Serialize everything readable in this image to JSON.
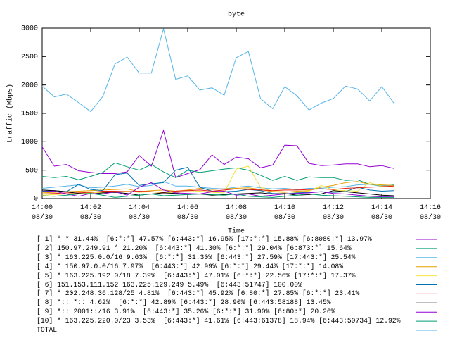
{
  "chart_data": {
    "type": "line",
    "title": "byte",
    "y_label": "traffic (Mbps)",
    "x_label": "Time",
    "x": [
      0,
      0.5,
      1,
      1.5,
      2,
      2.5,
      3,
      3.5,
      4,
      4.5,
      5,
      5.5,
      6,
      6.5,
      7,
      7.5,
      8,
      8.5,
      9,
      9.5,
      10,
      10.5,
      11,
      11.5,
      12,
      12.5,
      13,
      13.5,
      14,
      14.5
    ],
    "xlim": [
      0,
      16
    ],
    "xticks": [
      {
        "value": 0,
        "label": "14:00\n08/30"
      },
      {
        "value": 2,
        "label": "14:02\n08/30"
      },
      {
        "value": 4,
        "label": "14:04\n08/30"
      },
      {
        "value": 6,
        "label": "14:06\n08/30"
      },
      {
        "value": 8,
        "label": "14:08\n08/30"
      },
      {
        "value": 10,
        "label": "14:10\n08/30"
      },
      {
        "value": 12,
        "label": "14:12\n08/30"
      },
      {
        "value": 14,
        "label": "14:14\n08/30"
      },
      {
        "value": 16,
        "label": "14:16\n08/30"
      }
    ],
    "ylim": [
      0,
      3000
    ],
    "yticks": [
      0,
      500,
      1000,
      1500,
      2000,
      2500,
      3000
    ],
    "series": [
      {
        "name": "[ 1] * * 31.44%  [6:*:*] 47.57% [6:443:*] 16.95% [17:*:*] 15.88% [6:8080:*] 13.97%",
        "color": "#9400d3",
        "values": [
          910,
          570,
          600,
          490,
          460,
          440,
          440,
          470,
          760,
          570,
          1200,
          370,
          440,
          510,
          770,
          600,
          730,
          700,
          540,
          590,
          940,
          930,
          620,
          580,
          590,
          610,
          610,
          560,
          580,
          530
        ]
      },
      {
        "name": "[ 2] 150.97.249.91 * 21.20%  [6:443:*] 41.30% [6:*:*] 29.04% [6:873:*] 15.64%",
        "color": "#009e73",
        "values": [
          390,
          370,
          390,
          330,
          390,
          460,
          630,
          560,
          500,
          600,
          470,
          370,
          500,
          460,
          490,
          520,
          540,
          500,
          410,
          320,
          390,
          320,
          380,
          370,
          370,
          320,
          330,
          250,
          220,
          240
        ]
      },
      {
        "name": "[ 3] * 163.225.0.0/16 9.63%  [6:*:*] 31.30% [6:443:*] 27.59% [17:443:*] 25.54%",
        "color": "#56b4e9",
        "values": [
          180,
          200,
          220,
          240,
          190,
          200,
          220,
          250,
          210,
          230,
          300,
          220,
          220,
          200,
          180,
          170,
          200,
          220,
          190,
          170,
          180,
          160,
          180,
          180,
          200,
          210,
          240,
          250,
          230,
          230
        ]
      },
      {
        "name": "[ 4] * 150.97.0.0/16 7.97%  [6:443:*] 42.99% [6:*:*] 29.44% [17:*:*] 14.08%",
        "color": "#e69f00",
        "values": [
          100,
          110,
          120,
          130,
          140,
          150,
          160,
          170,
          120,
          140,
          150,
          130,
          150,
          180,
          160,
          170,
          180,
          190,
          160,
          120,
          110,
          130,
          140,
          200,
          230,
          280,
          300,
          250,
          240,
          230
        ]
      },
      {
        "name": "[ 5] * 163.225.192.0/18 7.39%  [6:443:*] 47.01% [6:*:*] 22.56% [17:*:*] 17.37%",
        "color": "#f0e442",
        "values": [
          60,
          70,
          80,
          90,
          100,
          110,
          120,
          130,
          110,
          120,
          100,
          110,
          120,
          130,
          110,
          100,
          520,
          570,
          200,
          130,
          120,
          110,
          130,
          230,
          150,
          140,
          130,
          280,
          220,
          200
        ]
      },
      {
        "name": "[ 6] 151.153.111.152 163.225.129.249 5.49%  [6:443:51747] 100.00%",
        "color": "#0072b2",
        "values": [
          130,
          140,
          120,
          250,
          160,
          140,
          420,
          450,
          230,
          260,
          280,
          500,
          550,
          200,
          130,
          120,
          130,
          160,
          140,
          90,
          80,
          100,
          110,
          120,
          110,
          120,
          200,
          150,
          130,
          140
        ]
      },
      {
        "name": "[ 7] * 202.248.36.128/25 4.81%  [6:443:*] 45.92% [6:80:*] 27.85% [6:*:*] 23.41%",
        "color": "#e51e10",
        "values": [
          80,
          90,
          100,
          100,
          110,
          130,
          130,
          120,
          130,
          120,
          110,
          130,
          140,
          150,
          130,
          150,
          170,
          160,
          150,
          140,
          150,
          150,
          160,
          170,
          160,
          180,
          190,
          200,
          210,
          220
        ]
      },
      {
        "name": "[ 8] *:: *:: 4.62%  [6:*:*] 42.89% [6:443:*] 28.90% [6:443:58188] 13.45%",
        "color": "#000000",
        "values": [
          150,
          140,
          120,
          90,
          80,
          100,
          110,
          90,
          60,
          80,
          100,
          90,
          70,
          80,
          60,
          70,
          80,
          90,
          100,
          80,
          90,
          60,
          70,
          80,
          140,
          120,
          100,
          80,
          60,
          50
        ]
      },
      {
        "name": "[ 9] *:: 2001::/16 3.91%  [6:443:*] 35.26% [6:*:*] 31.90% [6:80:*] 20.26%",
        "color": "#9400d3",
        "values": [
          120,
          130,
          80,
          40,
          90,
          80,
          120,
          60,
          200,
          280,
          150,
          100,
          90,
          80,
          120,
          130,
          60,
          80,
          40,
          60,
          80,
          90,
          100,
          120,
          90,
          80,
          60,
          40,
          30,
          30
        ]
      },
      {
        "name": "[10] * 163.225.220.0/23 3.53%  [6:443:*] 41.61% [6:443:61378] 18.94% [6:443:50734] 12.92%",
        "color": "#009e73",
        "values": [
          50,
          40,
          60,
          80,
          90,
          60,
          20,
          40,
          60,
          80,
          50,
          60,
          70,
          80,
          70,
          60,
          80,
          40,
          30,
          20,
          40,
          60,
          80,
          60,
          50,
          40,
          30,
          20,
          20,
          20
        ]
      },
      {
        "name": "TOTAL",
        "color": "#56b4e9",
        "values": [
          1980,
          1790,
          1840,
          1690,
          1530,
          1800,
          2370,
          2490,
          2210,
          2210,
          2990,
          2100,
          2160,
          1910,
          1950,
          1820,
          2480,
          2590,
          1760,
          1580,
          1970,
          1810,
          1560,
          1680,
          1760,
          1980,
          1930,
          1720,
          1970,
          1680
        ]
      }
    ]
  }
}
